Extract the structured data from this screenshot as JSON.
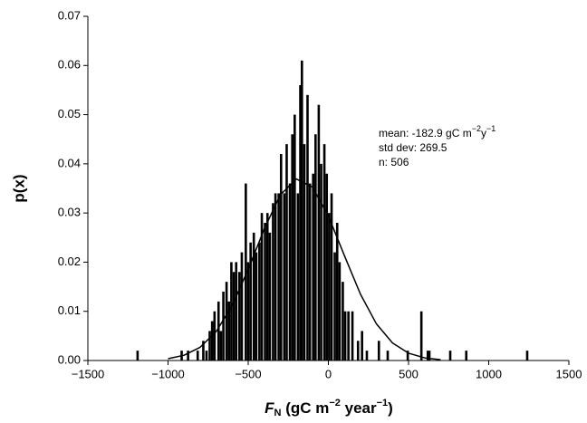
{
  "chart_data": {
    "type": "histogram",
    "x_label": [
      "F",
      "N",
      " (gC m",
      "−2",
      " year",
      "−1",
      ")"
    ],
    "y_label": "p(x)",
    "annotations": {
      "mean": [
        "mean: -182.9 gC m",
        "−2",
        "y",
        "−1"
      ],
      "std": "std dev: 269.5",
      "n": "n: 506"
    },
    "color": "#000000",
    "x": [
      -1190,
      -915,
      -875,
      -815,
      -780,
      -760,
      -740,
      -725,
      -710,
      -685,
      -670,
      -655,
      -635,
      -620,
      -605,
      -590,
      -575,
      -555,
      -540,
      -515,
      -500,
      -485,
      -465,
      -450,
      -430,
      -415,
      -395,
      -380,
      -365,
      -345,
      -330,
      -310,
      -295,
      -275,
      -260,
      -240,
      -225,
      -210,
      -190,
      -175,
      -165,
      -150,
      -130,
      -115,
      -95,
      -80,
      -60,
      -45,
      -25,
      -10,
      5,
      20,
      40,
      55,
      70,
      90,
      105,
      125,
      150,
      185,
      210,
      240,
      315,
      370,
      495,
      580,
      620,
      630,
      760,
      860,
      1240
    ],
    "values": [
      0.002,
      0.002,
      0.002,
      0.002,
      0.004,
      0.002,
      0.006,
      0.008,
      0.01,
      0.012,
      0.006,
      0.014,
      0.016,
      0.012,
      0.02,
      0.018,
      0.02,
      0.018,
      0.022,
      0.036,
      0.02,
      0.024,
      0.026,
      0.022,
      0.024,
      0.03,
      0.028,
      0.03,
      0.026,
      0.032,
      0.034,
      0.034,
      0.042,
      0.034,
      0.044,
      0.036,
      0.046,
      0.05,
      0.034,
      0.056,
      0.061,
      0.044,
      0.054,
      0.036,
      0.038,
      0.046,
      0.052,
      0.04,
      0.044,
      0.038,
      0.03,
      0.034,
      0.022,
      0.028,
      0.02,
      0.016,
      0.01,
      0.01,
      0.01,
      0.004,
      0.006,
      0.002,
      0.004,
      0.002,
      0.002,
      0.01,
      0.002,
      0.002,
      0.002,
      0.002,
      0.002
    ],
    "curve": {
      "x": [
        -1000,
        -900,
        -800,
        -700,
        -600,
        -500,
        -400,
        -300,
        -200,
        -100,
        0,
        100,
        200,
        300,
        400,
        500,
        600,
        700
      ],
      "values": [
        0.00037,
        0.00107,
        0.00269,
        0.00587,
        0.01117,
        0.01852,
        0.02675,
        0.03367,
        0.03693,
        0.03529,
        0.02939,
        0.02133,
        0.01349,
        0.00743,
        0.00357,
        0.00149,
        0.00054,
        0.00017
      ],
      "color": "#000000"
    },
    "xlim": [
      -1500,
      1500
    ],
    "xticks": [
      {
        "value": -1500,
        "label": "−1500"
      },
      {
        "value": -1000,
        "label": "−1000"
      },
      {
        "value": -500,
        "label": "−500"
      },
      0,
      500,
      1000,
      1500
    ],
    "ylim": [
      0,
      0.07
    ],
    "yticks": [
      {
        "value": 0,
        "label": "0.00"
      },
      {
        "value": 0.01,
        "label": "0.01"
      },
      {
        "value": 0.02,
        "label": "0.02"
      },
      {
        "value": 0.03,
        "label": "0.03"
      },
      {
        "value": 0.04,
        "label": "0.04"
      },
      {
        "value": 0.05,
        "label": "0.05"
      },
      {
        "value": 0.06,
        "label": "0.06"
      },
      {
        "value": 0.07,
        "label": "0.07"
      }
    ],
    "grid": false
  }
}
